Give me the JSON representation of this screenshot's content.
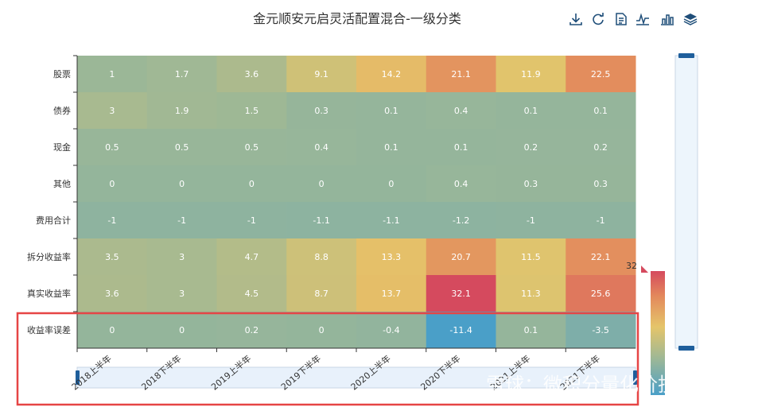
{
  "chart_data": {
    "type": "heatmap",
    "title": "金元顺安元启灵活配置混合-一级分类",
    "x_categories": [
      "2018上半年",
      "2018下半年",
      "2019上半年",
      "2019下半年",
      "2020上半年",
      "2020下半年",
      "2021上半年",
      "2021下半年"
    ],
    "y_categories": [
      "股票",
      "债券",
      "现金",
      "其他",
      "费用合计",
      "拆分收益率",
      "真实收益率",
      "收益率误差"
    ],
    "values": [
      [
        1,
        1.7,
        3.6,
        9.1,
        14.2,
        21.1,
        11.9,
        22.5
      ],
      [
        3,
        1.9,
        1.5,
        0.3,
        0.1,
        0.4,
        0.1,
        0.1
      ],
      [
        0.5,
        0.5,
        0.5,
        0.4,
        0.1,
        0.1,
        0.2,
        0.2
      ],
      [
        0,
        0,
        0,
        0,
        0,
        0.4,
        0.3,
        0.3
      ],
      [
        -1,
        -1,
        -1,
        -1.1,
        -1.1,
        -1.2,
        -1,
        -1
      ],
      [
        3.5,
        3,
        4.7,
        8.8,
        13.3,
        20.7,
        11.5,
        22.1
      ],
      [
        3.6,
        3,
        4.5,
        8.7,
        13.7,
        32.1,
        11.3,
        25.6
      ],
      [
        0,
        0,
        0.2,
        0,
        -0.4,
        -11.4,
        0.1,
        -3.5
      ]
    ],
    "visual_map": {
      "min": -11.4,
      "max": 32,
      "max_label": "32",
      "colors": [
        "#4a9fc8",
        "#9fb895",
        "#e5c56a",
        "#e3885c",
        "#d54a5e"
      ]
    },
    "highlight_box_color": "#e64545"
  },
  "toolbox": [
    "download-icon",
    "refresh-icon",
    "data-view-icon",
    "line-chart-icon",
    "bar-chart-icon",
    "stack-icon"
  ],
  "watermark": "雪球：微积分量化价投"
}
